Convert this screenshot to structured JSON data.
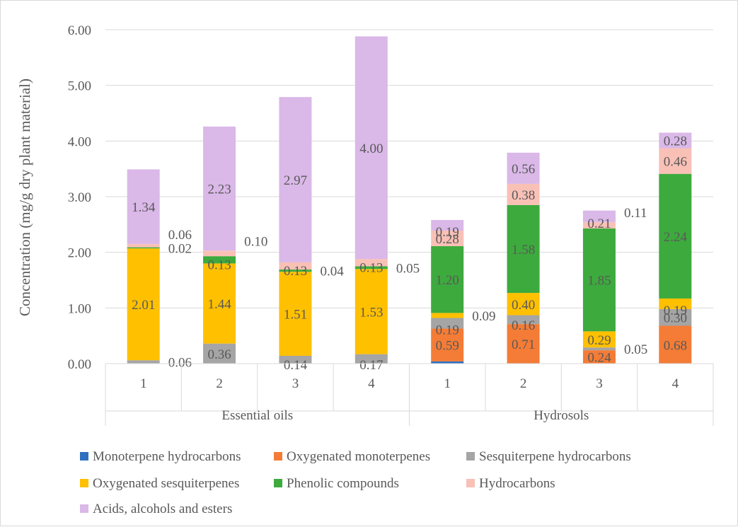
{
  "chart_data": {
    "type": "bar",
    "stacked": true,
    "title": "",
    "xlabel": "",
    "ylabel": "Concentration (mg/g dry plant material)",
    "ylim": [
      0,
      6
    ],
    "yticks": [
      "0.00",
      "1.00",
      "2.00",
      "3.00",
      "4.00",
      "5.00",
      "6.00"
    ],
    "gridlines": true,
    "legend_position": "bottom",
    "groups": [
      {
        "label": "Essential oils",
        "categories": [
          "1",
          "2",
          "3",
          "4"
        ]
      },
      {
        "label": "Hydrosols",
        "categories": [
          "1",
          "2",
          "3",
          "4"
        ]
      }
    ],
    "series": [
      {
        "name": "Monoterpene hydrocarbons",
        "color": "#2f6fbf",
        "values": [
          0,
          0,
          0,
          0,
          0.04,
          0,
          0,
          0
        ],
        "labels": [
          "",
          "",
          "",
          "",
          "",
          "",
          "",
          ""
        ]
      },
      {
        "name": "Oxygenated monoterpenes",
        "color": "#f47c36",
        "values": [
          0,
          0,
          0,
          0,
          0.59,
          0.71,
          0.24,
          0.68
        ],
        "labels": [
          "",
          "",
          "",
          "",
          "0.59",
          "0.71",
          "0.24",
          "0.68"
        ]
      },
      {
        "name": "Sesquiterpene hydrocarbons",
        "color": "#a5a5a5",
        "values": [
          0.06,
          0.36,
          0.14,
          0.17,
          0.19,
          0.16,
          0.05,
          0.3
        ],
        "labels": [
          "0.06",
          "0.36",
          "0.14",
          "0.17",
          "0.19",
          "0.16",
          "0.05",
          "0.30"
        ]
      },
      {
        "name": "Oxygenated sesquiterpenes",
        "color": "#ffc000",
        "values": [
          2.01,
          1.44,
          1.51,
          1.53,
          0.09,
          0.4,
          0.29,
          0.19
        ],
        "labels": [
          "2.01",
          "1.44",
          "1.51",
          "1.53",
          "0.09",
          "0.40",
          "0.29",
          "0.19"
        ]
      },
      {
        "name": "Phenolic compounds",
        "color": "#3daa3d",
        "values": [
          0.02,
          0.13,
          0.04,
          0.05,
          1.2,
          1.58,
          1.85,
          2.24
        ],
        "labels": [
          "0.02",
          "0.13",
          "0.04",
          "0.05",
          "1.20",
          "1.58",
          "1.85",
          "2.24"
        ]
      },
      {
        "name": "Hydrocarbons",
        "color": "#f9c0b6",
        "values": [
          0.06,
          0.1,
          0.13,
          0.13,
          0.28,
          0.38,
          0.11,
          0.46
        ],
        "labels": [
          "0.06",
          "0.10",
          "0.13",
          "0.13",
          "0.28",
          "0.38",
          "0.11",
          "0.46"
        ]
      },
      {
        "name": "Acids, alcohols and esters",
        "color": "#dab8e8",
        "values": [
          1.34,
          2.23,
          2.97,
          4.0,
          0.19,
          0.56,
          0.21,
          0.28
        ],
        "labels": [
          "1.34",
          "2.23",
          "2.97",
          "4.00",
          "0.19",
          "0.56",
          "0.21",
          "0.28"
        ]
      }
    ]
  }
}
